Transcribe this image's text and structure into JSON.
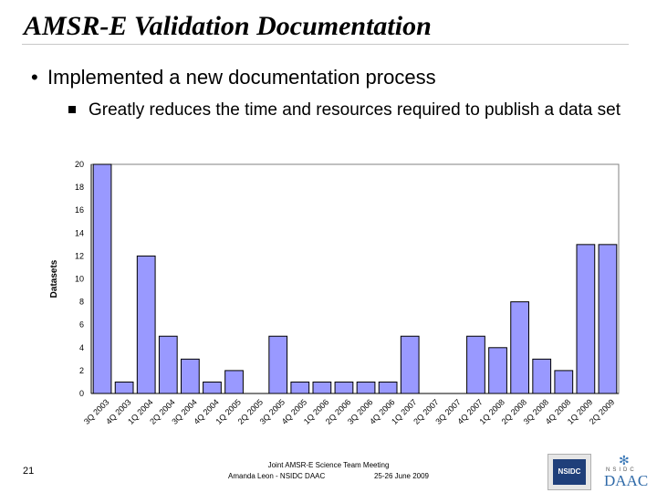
{
  "slide": {
    "title": "AMSR-E Validation Documentation",
    "bullet1": "Implemented a new documentation process",
    "bullet2": "Greatly reduces the time and resources required to publish a data set",
    "page_number": "21",
    "footer_line1": "Joint AMSR-E Science Team Meeting",
    "footer_author": "Amanda Leon - NSIDC DAAC",
    "footer_date": "25-26 June 2009",
    "logo_nsidc": "NSIDC",
    "logo_daac_small": "NSIDC",
    "logo_daac_big": "DAAC"
  },
  "colors": {
    "bar": "#9999ff",
    "bar_stroke": "#000000",
    "plot_bg": "#ffffff",
    "frame": "#808080"
  },
  "chart_data": {
    "type": "bar",
    "title": "",
    "xlabel": "",
    "ylabel": "Datasets",
    "ylim": [
      0,
      20
    ],
    "yticks": [
      0,
      2,
      4,
      6,
      8,
      10,
      12,
      14,
      16,
      18,
      20
    ],
    "ytick_labels": [
      "0",
      "2",
      "4",
      "6",
      "8",
      "10",
      "12",
      "14",
      "16",
      "18",
      "20"
    ],
    "grid": false,
    "legend": "none",
    "categories": [
      "3Q 2003",
      "4Q 2003",
      "1Q 2004",
      "2Q 2004",
      "3Q 2004",
      "4Q 2004",
      "1Q 2005",
      "2Q 2005",
      "3Q 2005",
      "4Q 2005",
      "1Q 2006",
      "2Q 2006",
      "3Q 2006",
      "4Q 2006",
      "1Q 2007",
      "2Q 2007",
      "3Q 2007",
      "4Q 2007",
      "1Q 2008",
      "2Q 2008",
      "3Q 2008",
      "4Q 2008",
      "1Q 2009",
      "2Q 2009"
    ],
    "values": [
      20,
      1,
      12,
      5,
      3,
      1,
      2,
      0,
      5,
      1,
      1,
      1,
      1,
      1,
      5,
      0,
      0,
      5,
      4,
      8,
      3,
      2,
      13,
      13
    ]
  }
}
